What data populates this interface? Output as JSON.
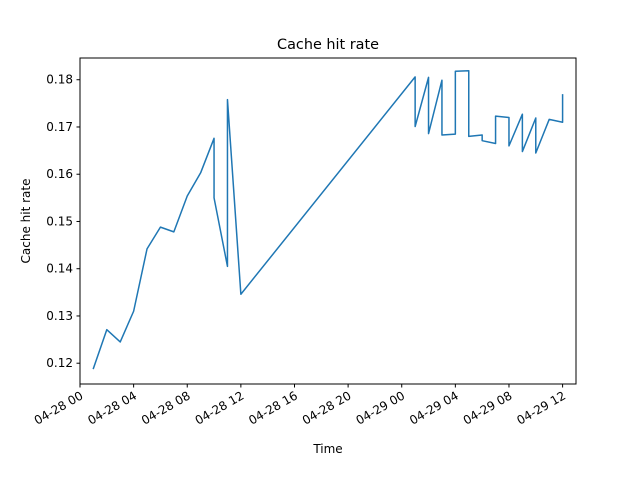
{
  "chart_data": {
    "type": "line",
    "title": "Cache hit rate",
    "xlabel": "Time",
    "ylabel": "Cache hit rate",
    "x_axis_type": "datetime",
    "xlim": [
      "2025-04-28T00:00",
      "2025-04-29T13:00"
    ],
    "ylim": [
      0.1156,
      0.1846
    ],
    "grid": false,
    "x_ticks": [
      {
        "value": "2025-04-28T00:00",
        "label": "04-28 00"
      },
      {
        "value": "2025-04-28T04:00",
        "label": "04-28 04"
      },
      {
        "value": "2025-04-28T08:00",
        "label": "04-28 08"
      },
      {
        "value": "2025-04-28T12:00",
        "label": "04-28 12"
      },
      {
        "value": "2025-04-28T16:00",
        "label": "04-28 16"
      },
      {
        "value": "2025-04-28T20:00",
        "label": "04-28 20"
      },
      {
        "value": "2025-04-29T00:00",
        "label": "04-29 00"
      },
      {
        "value": "2025-04-29T04:00",
        "label": "04-29 04"
      },
      {
        "value": "2025-04-29T08:00",
        "label": "04-29 08"
      },
      {
        "value": "2025-04-29T12:00",
        "label": "04-29 12"
      }
    ],
    "y_ticks": [
      {
        "value": 0.12,
        "label": "0.12"
      },
      {
        "value": 0.13,
        "label": "0.13"
      },
      {
        "value": 0.14,
        "label": "0.14"
      },
      {
        "value": 0.15,
        "label": "0.15"
      },
      {
        "value": 0.16,
        "label": "0.16"
      },
      {
        "value": 0.17,
        "label": "0.17"
      },
      {
        "value": 0.18,
        "label": "0.18"
      }
    ],
    "series": [
      {
        "color": "#1f77b4",
        "points": [
          {
            "x": "2025-04-28T01:00",
            "y": 0.1189
          },
          {
            "x": "2025-04-28T02:00",
            "y": 0.1271
          },
          {
            "x": "2025-04-28T03:00",
            "y": 0.1245
          },
          {
            "x": "2025-04-28T04:00",
            "y": 0.131
          },
          {
            "x": "2025-04-28T05:00",
            "y": 0.1442
          },
          {
            "x": "2025-04-28T06:00",
            "y": 0.1488
          },
          {
            "x": "2025-04-28T07:00",
            "y": 0.1478
          },
          {
            "x": "2025-04-28T08:00",
            "y": 0.1554
          },
          {
            "x": "2025-04-28T09:00",
            "y": 0.1603
          },
          {
            "x": "2025-04-28T10:00",
            "y": 0.1676
          },
          {
            "x": "2025-04-28T10:00",
            "y": 0.155
          },
          {
            "x": "2025-04-28T11:00",
            "y": 0.1405
          },
          {
            "x": "2025-04-28T11:00",
            "y": 0.1758
          },
          {
            "x": "2025-04-28T12:00",
            "y": 0.1346
          },
          {
            "x": "2025-04-29T01:00",
            "y": 0.1806
          },
          {
            "x": "2025-04-29T01:00",
            "y": 0.1701
          },
          {
            "x": "2025-04-29T02:00",
            "y": 0.1805
          },
          {
            "x": "2025-04-29T02:00",
            "y": 0.1686
          },
          {
            "x": "2025-04-29T03:00",
            "y": 0.1799
          },
          {
            "x": "2025-04-29T03:00",
            "y": 0.1683
          },
          {
            "x": "2025-04-29T04:00",
            "y": 0.1685
          },
          {
            "x": "2025-04-29T04:00",
            "y": 0.1818
          },
          {
            "x": "2025-04-29T05:00",
            "y": 0.1819
          },
          {
            "x": "2025-04-29T05:00",
            "y": 0.168
          },
          {
            "x": "2025-04-29T06:00",
            "y": 0.1683
          },
          {
            "x": "2025-04-29T06:00",
            "y": 0.1671
          },
          {
            "x": "2025-04-29T07:00",
            "y": 0.1665
          },
          {
            "x": "2025-04-29T07:00",
            "y": 0.1723
          },
          {
            "x": "2025-04-29T08:00",
            "y": 0.172
          },
          {
            "x": "2025-04-29T08:00",
            "y": 0.166
          },
          {
            "x": "2025-04-29T09:00",
            "y": 0.1727
          },
          {
            "x": "2025-04-29T09:00",
            "y": 0.1648
          },
          {
            "x": "2025-04-29T10:00",
            "y": 0.1719
          },
          {
            "x": "2025-04-29T10:00",
            "y": 0.1645
          },
          {
            "x": "2025-04-29T11:00",
            "y": 0.1716
          },
          {
            "x": "2025-04-29T12:00",
            "y": 0.171
          },
          {
            "x": "2025-04-29T12:00",
            "y": 0.1768
          }
        ]
      }
    ]
  }
}
